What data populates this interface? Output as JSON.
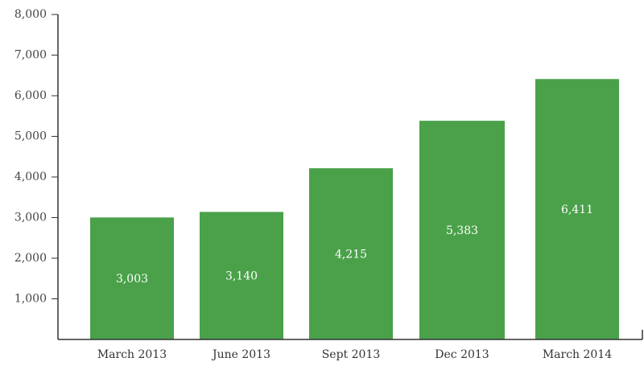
{
  "chart_data": {
    "type": "bar",
    "categories": [
      "March 2013",
      "June 2013",
      "Sept 2013",
      "Dec 2013",
      "March 2014"
    ],
    "values": [
      3003,
      3140,
      4215,
      5383,
      6411
    ],
    "data_labels": [
      "3,003",
      "3,140",
      "4,215",
      "5,383",
      "6,411"
    ],
    "title": "",
    "xlabel": "",
    "ylabel": "",
    "ylim": [
      0,
      8000
    ],
    "yticks": [
      1000,
      2000,
      3000,
      4000,
      5000,
      6000,
      7000,
      8000
    ],
    "ytick_labels": [
      "1,000",
      "2,000",
      "3,000",
      "4,000",
      "5,000",
      "6,000",
      "7,000",
      "8,000"
    ],
    "grid": false,
    "bar_color": "#4aa14a"
  }
}
